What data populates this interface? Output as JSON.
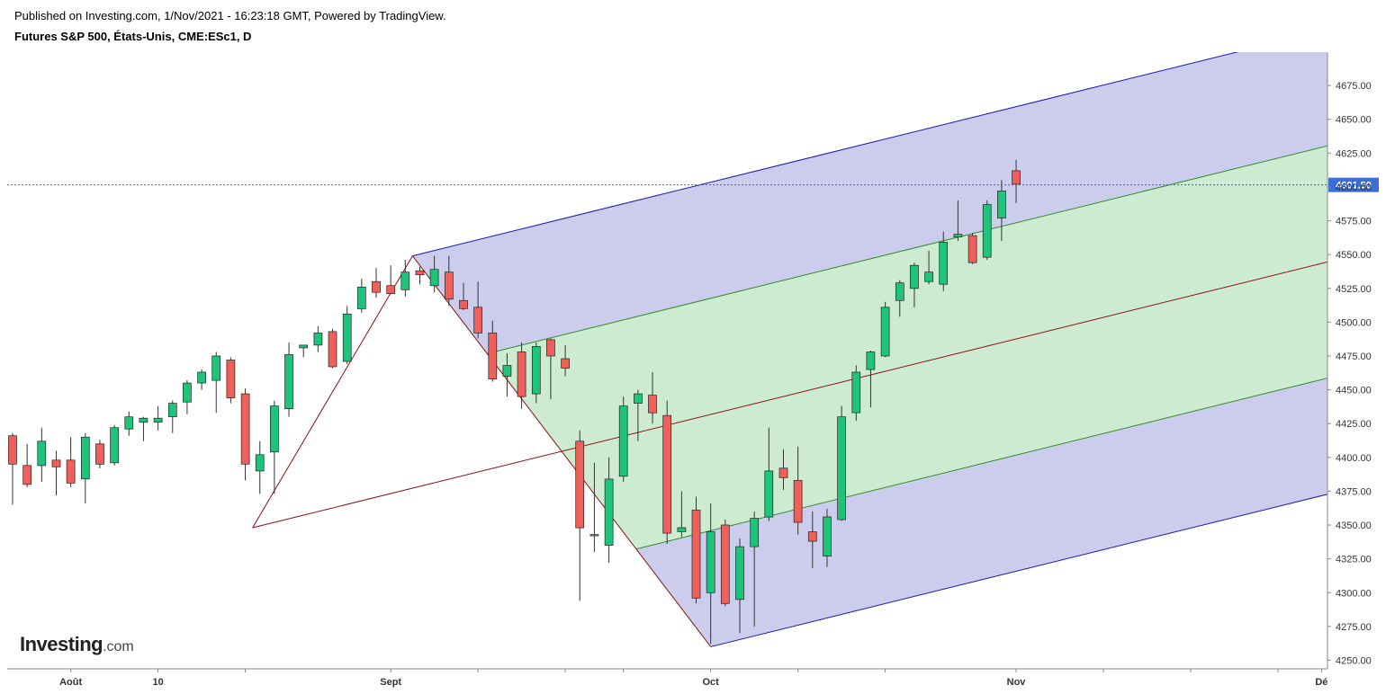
{
  "header": {
    "published": "Published on Investing.com, 1/Nov/2021 - 16:23:18 GMT, Powered by TradingView.",
    "instrument": "Futures S&P 500, États-Unis, CME:ESc1, D"
  },
  "logo": {
    "brand": "Investing",
    "suffix": ".com"
  },
  "colors": {
    "up": "#1ec47a",
    "down": "#f0605a",
    "wick": "#333333",
    "outer_fill": "#cccdec",
    "inner_fill": "#cdebd1",
    "outer_line": "#1717b5",
    "inner_line": "#2f8c2f",
    "median_line": "#8b1010",
    "price_line": "#3b5bdb",
    "price_badge": "#3b6fd8"
  },
  "chart_data": {
    "type": "candlestick",
    "title": "Futures S&P 500, États-Unis, CME:ESc1, D",
    "ylim": [
      4245,
      4695
    ],
    "y_ticks": [
      4675,
      4650,
      4625,
      4600,
      4575,
      4550,
      4525,
      4500,
      4475,
      4450,
      4425,
      4400,
      4375,
      4350,
      4325,
      4300,
      4275,
      4250
    ],
    "y_tick_labels": [
      "4675.00",
      "4650.00",
      "4625.00",
      "4600.00",
      "4575.00",
      "4550.00",
      "4525.00",
      "4500.00",
      "4475.00",
      "4450.00",
      "4425.00",
      "4400.00",
      "4375.00",
      "4350.00",
      "4325.00",
      "4300.00",
      "4275.00",
      "4250.00"
    ],
    "x_labels": [
      {
        "label": "Août",
        "index": 4
      },
      {
        "label": "10",
        "index": 10
      },
      {
        "label": "Sept",
        "index": 26
      },
      {
        "label": "Oct",
        "index": 48
      },
      {
        "label": "Nov",
        "index": 69
      },
      {
        "label": "Dé",
        "index": 90
      }
    ],
    "x_minor_ticks": [
      16,
      32,
      38,
      42,
      54,
      60,
      75,
      81,
      87
    ],
    "last_price": 4601.5,
    "last_price_label": "4601.50",
    "candles": [
      {
        "o": 4416,
        "h": 4418,
        "l": 4365,
        "c": 4395
      },
      {
        "o": 4394,
        "h": 4410,
        "l": 4378,
        "c": 4380
      },
      {
        "o": 4394,
        "h": 4422,
        "l": 4382,
        "c": 4412
      },
      {
        "o": 4398,
        "h": 4405,
        "l": 4372,
        "c": 4393
      },
      {
        "o": 4398,
        "h": 4415,
        "l": 4378,
        "c": 4381
      },
      {
        "o": 4384,
        "h": 4418,
        "l": 4366,
        "c": 4415
      },
      {
        "o": 4410,
        "h": 4413,
        "l": 4392,
        "c": 4395
      },
      {
        "o": 4396,
        "h": 4424,
        "l": 4394,
        "c": 4422
      },
      {
        "o": 4421,
        "h": 4434,
        "l": 4416,
        "c": 4430
      },
      {
        "o": 4426,
        "h": 4430,
        "l": 4412,
        "c": 4429
      },
      {
        "o": 4426,
        "h": 4438,
        "l": 4420,
        "c": 4429
      },
      {
        "o": 4430,
        "h": 4442,
        "l": 4418,
        "c": 4440
      },
      {
        "o": 4441,
        "h": 4457,
        "l": 4432,
        "c": 4455
      },
      {
        "o": 4455,
        "h": 4465,
        "l": 4450,
        "c": 4463
      },
      {
        "o": 4457,
        "h": 4478,
        "l": 4433,
        "c": 4475
      },
      {
        "o": 4472,
        "h": 4474,
        "l": 4440,
        "c": 4444
      },
      {
        "o": 4447,
        "h": 4451,
        "l": 4383,
        "c": 4395
      },
      {
        "o": 4390,
        "h": 4412,
        "l": 4373,
        "c": 4402
      },
      {
        "o": 4404,
        "h": 4442,
        "l": 4373,
        "c": 4438
      },
      {
        "o": 4436,
        "h": 4485,
        "l": 4430,
        "c": 4476
      },
      {
        "o": 4481,
        "h": 4483,
        "l": 4474,
        "c": 4483
      },
      {
        "o": 4483,
        "h": 4497,
        "l": 4478,
        "c": 4492
      },
      {
        "o": 4493,
        "h": 4495,
        "l": 4466,
        "c": 4467
      },
      {
        "o": 4471,
        "h": 4512,
        "l": 4469,
        "c": 4506
      },
      {
        "o": 4510,
        "h": 4532,
        "l": 4507,
        "c": 4526
      },
      {
        "o": 4530,
        "h": 4540,
        "l": 4518,
        "c": 4522
      },
      {
        "o": 4527,
        "h": 4542,
        "l": 4524,
        "c": 4521
      },
      {
        "o": 4524,
        "h": 4546,
        "l": 4519,
        "c": 4537
      },
      {
        "o": 4538,
        "h": 4541,
        "l": 4528,
        "c": 4535
      },
      {
        "o": 4527,
        "h": 4549,
        "l": 4522,
        "c": 4539
      },
      {
        "o": 4537,
        "h": 4549,
        "l": 4512,
        "c": 4517
      },
      {
        "o": 4516,
        "h": 4529,
        "l": 4509,
        "c": 4510
      },
      {
        "o": 4511,
        "h": 4530,
        "l": 4488,
        "c": 4492
      },
      {
        "o": 4492,
        "h": 4501,
        "l": 4456,
        "c": 4458
      },
      {
        "o": 4460,
        "h": 4477,
        "l": 4445,
        "c": 4468
      },
      {
        "o": 4478,
        "h": 4485,
        "l": 4436,
        "c": 4445
      },
      {
        "o": 4447,
        "h": 4485,
        "l": 4440,
        "c": 4482
      },
      {
        "o": 4487,
        "h": 4488,
        "l": 4443,
        "c": 4475
      },
      {
        "o": 4473,
        "h": 4483,
        "l": 4460,
        "c": 4466
      },
      {
        "o": 4412,
        "h": 4420,
        "l": 4294,
        "c": 4348
      },
      {
        "o": 4342,
        "h": 4396,
        "l": 4330,
        "c": 4343
      },
      {
        "o": 4335,
        "h": 4400,
        "l": 4322,
        "c": 4384
      },
      {
        "o": 4386,
        "h": 4445,
        "l": 4382,
        "c": 4438
      },
      {
        "o": 4440,
        "h": 4450,
        "l": 4412,
        "c": 4447
      },
      {
        "o": 4446,
        "h": 4463,
        "l": 4425,
        "c": 4433
      },
      {
        "o": 4431,
        "h": 4442,
        "l": 4336,
        "c": 4344
      },
      {
        "o": 4345,
        "h": 4375,
        "l": 4341,
        "c": 4348
      },
      {
        "o": 4361,
        "h": 4371,
        "l": 4292,
        "c": 4296
      },
      {
        "o": 4300,
        "h": 4366,
        "l": 4262,
        "c": 4345
      },
      {
        "o": 4350,
        "h": 4354,
        "l": 4290,
        "c": 4292
      },
      {
        "o": 4295,
        "h": 4340,
        "l": 4270,
        "c": 4334
      },
      {
        "o": 4334,
        "h": 4360,
        "l": 4275,
        "c": 4355
      },
      {
        "o": 4356,
        "h": 4422,
        "l": 4353,
        "c": 4390
      },
      {
        "o": 4392,
        "h": 4406,
        "l": 4376,
        "c": 4385
      },
      {
        "o": 4383,
        "h": 4408,
        "l": 4343,
        "c": 4352
      },
      {
        "o": 4345,
        "h": 4360,
        "l": 4318,
        "c": 4338
      },
      {
        "o": 4327,
        "h": 4362,
        "l": 4319,
        "c": 4356
      },
      {
        "o": 4354,
        "h": 4438,
        "l": 4353,
        "c": 4430
      },
      {
        "o": 4433,
        "h": 4468,
        "l": 4427,
        "c": 4463
      },
      {
        "o": 4465,
        "h": 4479,
        "l": 4437,
        "c": 4478
      },
      {
        "o": 4475,
        "h": 4515,
        "l": 4474,
        "c": 4511
      },
      {
        "o": 4516,
        "h": 4531,
        "l": 4504,
        "c": 4529
      },
      {
        "o": 4525,
        "h": 4544,
        "l": 4511,
        "c": 4542
      },
      {
        "o": 4530,
        "h": 4553,
        "l": 4528,
        "c": 4537
      },
      {
        "o": 4528,
        "h": 4567,
        "l": 4523,
        "c": 4559
      },
      {
        "o": 4563,
        "h": 4590,
        "l": 4560,
        "c": 4565
      },
      {
        "o": 4564,
        "h": 4566,
        "l": 4543,
        "c": 4544
      },
      {
        "o": 4548,
        "h": 4590,
        "l": 4546,
        "c": 4587
      },
      {
        "o": 4577,
        "h": 4605,
        "l": 4560,
        "c": 4597
      },
      {
        "o": 4612,
        "h": 4620,
        "l": 4588,
        "c": 4602
      }
    ],
    "pitchfork": {
      "pivot": {
        "index": 16.5,
        "price": 4348
      },
      "upper": {
        "index": 27.5,
        "price": 4549
      },
      "lower": {
        "index": 48.0,
        "price": 4260
      },
      "extend_to_index": 91.5,
      "inner_offset": 0.5
    }
  }
}
